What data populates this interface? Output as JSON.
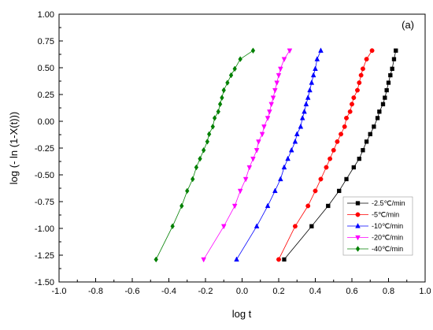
{
  "chart_data": {
    "type": "line",
    "title": "",
    "panel_label": "(a)",
    "xlabel": "log t",
    "ylabel": "log (- ln (1-X(t)))",
    "xlim": [
      -1.0,
      1.0
    ],
    "ylim": [
      -1.5,
      1.0
    ],
    "x_ticks": [
      "-1.0",
      "-0.8",
      "-0.6",
      "-0.4",
      "-0.2",
      "0.0",
      "0.2",
      "0.4",
      "0.6",
      "0.8",
      "1.0"
    ],
    "y_ticks": [
      "1.00",
      "0.75",
      "0.50",
      "0.25",
      "0.00",
      "-0.25",
      "-0.50",
      "-0.75",
      "-1.00",
      "-1.25",
      "-1.50"
    ],
    "grid": false,
    "legend_position": "bottom-right",
    "series": [
      {
        "name": "-2.5℃/min",
        "color": "#000000",
        "marker": "square",
        "points": [
          [
            0.23,
            -1.29
          ],
          [
            0.38,
            -0.98
          ],
          [
            0.47,
            -0.79
          ],
          [
            0.53,
            -0.65
          ],
          [
            0.57,
            -0.54
          ],
          [
            0.61,
            -0.43
          ],
          [
            0.64,
            -0.35
          ],
          [
            0.66,
            -0.27
          ],
          [
            0.68,
            -0.19
          ],
          [
            0.7,
            -0.12
          ],
          [
            0.72,
            -0.05
          ],
          [
            0.74,
            0.03
          ],
          [
            0.75,
            0.09
          ],
          [
            0.77,
            0.16
          ],
          [
            0.78,
            0.22
          ],
          [
            0.79,
            0.29
          ],
          [
            0.8,
            0.36
          ],
          [
            0.81,
            0.43
          ],
          [
            0.82,
            0.49
          ],
          [
            0.83,
            0.58
          ],
          [
            0.84,
            0.66
          ]
        ]
      },
      {
        "name": "-5℃/min",
        "color": "#ff0000",
        "marker": "circle",
        "points": [
          [
            0.2,
            -1.29
          ],
          [
            0.29,
            -0.98
          ],
          [
            0.36,
            -0.79
          ],
          [
            0.4,
            -0.65
          ],
          [
            0.43,
            -0.54
          ],
          [
            0.46,
            -0.43
          ],
          [
            0.48,
            -0.35
          ],
          [
            0.5,
            -0.27
          ],
          [
            0.52,
            -0.19
          ],
          [
            0.54,
            -0.12
          ],
          [
            0.56,
            -0.05
          ],
          [
            0.57,
            0.03
          ],
          [
            0.59,
            0.09
          ],
          [
            0.6,
            0.16
          ],
          [
            0.61,
            0.22
          ],
          [
            0.63,
            0.29
          ],
          [
            0.64,
            0.36
          ],
          [
            0.65,
            0.43
          ],
          [
            0.66,
            0.49
          ],
          [
            0.68,
            0.58
          ],
          [
            0.71,
            0.66
          ]
        ]
      },
      {
        "name": "-10℃/min",
        "color": "#0000ff",
        "marker": "triangle-up",
        "points": [
          [
            -0.03,
            -1.29
          ],
          [
            0.08,
            -0.98
          ],
          [
            0.14,
            -0.79
          ],
          [
            0.18,
            -0.65
          ],
          [
            0.21,
            -0.54
          ],
          [
            0.23,
            -0.43
          ],
          [
            0.25,
            -0.35
          ],
          [
            0.27,
            -0.27
          ],
          [
            0.29,
            -0.19
          ],
          [
            0.3,
            -0.12
          ],
          [
            0.32,
            -0.05
          ],
          [
            0.33,
            0.03
          ],
          [
            0.34,
            0.09
          ],
          [
            0.35,
            0.16
          ],
          [
            0.36,
            0.22
          ],
          [
            0.37,
            0.29
          ],
          [
            0.38,
            0.36
          ],
          [
            0.39,
            0.43
          ],
          [
            0.4,
            0.49
          ],
          [
            0.41,
            0.58
          ],
          [
            0.43,
            0.66
          ]
        ]
      },
      {
        "name": "-20℃/min",
        "color": "#ff00ff",
        "marker": "triangle-down",
        "points": [
          [
            -0.21,
            -1.29
          ],
          [
            -0.1,
            -0.98
          ],
          [
            -0.04,
            -0.79
          ],
          [
            -0.01,
            -0.65
          ],
          [
            0.02,
            -0.54
          ],
          [
            0.04,
            -0.43
          ],
          [
            0.06,
            -0.35
          ],
          [
            0.08,
            -0.27
          ],
          [
            0.09,
            -0.19
          ],
          [
            0.11,
            -0.12
          ],
          [
            0.12,
            -0.05
          ],
          [
            0.14,
            0.03
          ],
          [
            0.15,
            0.09
          ],
          [
            0.16,
            0.16
          ],
          [
            0.17,
            0.22
          ],
          [
            0.18,
            0.29
          ],
          [
            0.19,
            0.36
          ],
          [
            0.2,
            0.43
          ],
          [
            0.21,
            0.49
          ],
          [
            0.23,
            0.58
          ],
          [
            0.26,
            0.66
          ]
        ]
      },
      {
        "name": "-40℃/min",
        "color": "#008000",
        "marker": "diamond",
        "points": [
          [
            -0.47,
            -1.29
          ],
          [
            -0.38,
            -0.98
          ],
          [
            -0.33,
            -0.79
          ],
          [
            -0.3,
            -0.65
          ],
          [
            -0.27,
            -0.54
          ],
          [
            -0.25,
            -0.43
          ],
          [
            -0.23,
            -0.35
          ],
          [
            -0.21,
            -0.27
          ],
          [
            -0.19,
            -0.19
          ],
          [
            -0.18,
            -0.12
          ],
          [
            -0.16,
            -0.05
          ],
          [
            -0.15,
            0.03
          ],
          [
            -0.13,
            0.09
          ],
          [
            -0.12,
            0.16
          ],
          [
            -0.11,
            0.22
          ],
          [
            -0.1,
            0.29
          ],
          [
            -0.08,
            0.36
          ],
          [
            -0.06,
            0.43
          ],
          [
            -0.04,
            0.49
          ],
          [
            -0.01,
            0.58
          ],
          [
            0.06,
            0.66
          ]
        ]
      }
    ]
  }
}
